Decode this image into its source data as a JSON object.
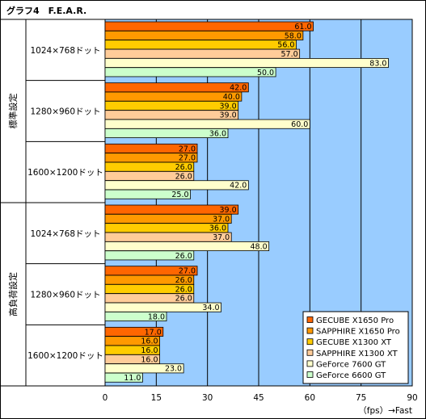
{
  "chart_data": {
    "type": "bar",
    "orientation": "horizontal",
    "title": "グラフ4　F.E.A.R.",
    "xlabel": "（fps）→Fast",
    "xlim": [
      0,
      90
    ],
    "xticks": [
      0,
      15,
      30,
      45,
      60,
      75,
      90
    ],
    "grid": true,
    "legend_position": "bottom-right",
    "groups": [
      {
        "label": "標準設定",
        "categories": [
          0,
          1,
          2
        ]
      },
      {
        "label": "高負荷設定",
        "categories": [
          3,
          4,
          5
        ]
      }
    ],
    "categories": [
      "1024×768ドット",
      "1280×960ドット",
      "1600×1200ドット",
      "1024×768ドット",
      "1280×960ドット",
      "1600×1200ドット"
    ],
    "series": [
      {
        "name": "GECUBE X1650 Pro",
        "color": "#ff6600",
        "values": [
          61.0,
          42.0,
          27.0,
          39.0,
          27.0,
          17.0
        ]
      },
      {
        "name": "SAPPHIRE X1650 Pro",
        "color": "#ff9900",
        "values": [
          58.0,
          40.0,
          27.0,
          37.0,
          26.0,
          16.0
        ]
      },
      {
        "name": "GECUBE X1300 XT",
        "color": "#ffcc00",
        "values": [
          56.0,
          39.0,
          26.0,
          36.0,
          26.0,
          16.0
        ]
      },
      {
        "name": "SAPPHIRE X1300 XT",
        "color": "#ffcc99",
        "values": [
          57.0,
          39.0,
          26.0,
          37.0,
          26.0,
          16.0
        ]
      },
      {
        "name": "GeForce 7600 GT",
        "color": "#ffffcc",
        "values": [
          83.0,
          60.0,
          42.0,
          48.0,
          34.0,
          23.0
        ]
      },
      {
        "name": "GeForce 6600 GT",
        "color": "#ccffcc",
        "values": [
          50.0,
          36.0,
          25.0,
          26.0,
          18.0,
          11.0
        ]
      }
    ],
    "colors": {
      "plot_background": "#99ccff",
      "grid": "#000000"
    }
  }
}
